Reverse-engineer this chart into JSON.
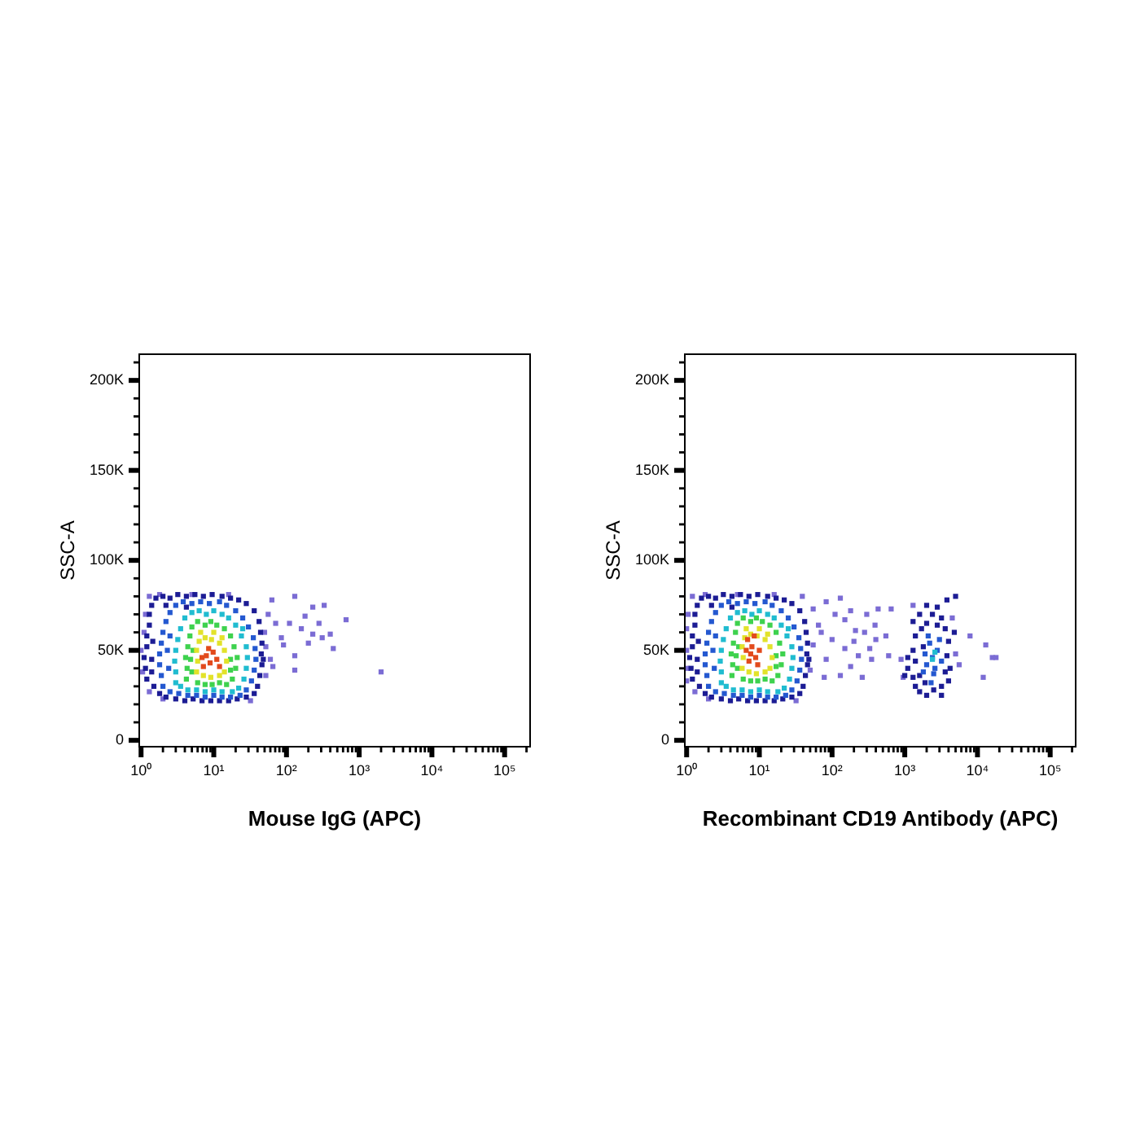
{
  "chart_data": [
    {
      "type": "scatter",
      "xlabel": "Mouse IgG (APC)",
      "ylabel": "SSC-A",
      "log": "x",
      "marker": "square",
      "xlim": [
        0.92,
        230000
      ],
      "ylim": [
        -4000,
        215000
      ],
      "xticks": [
        {
          "value": 1,
          "label": "10⁰"
        },
        {
          "value": 2,
          "label": null
        },
        {
          "value": 3,
          "label": null
        },
        {
          "value": 4,
          "label": null
        },
        {
          "value": 5,
          "label": null
        },
        {
          "value": 6,
          "label": null
        },
        {
          "value": 7,
          "label": null
        },
        {
          "value": 8,
          "label": null
        },
        {
          "value": 9,
          "label": null
        },
        {
          "value": 10,
          "label": "10¹"
        },
        {
          "value": 20,
          "label": null
        },
        {
          "value": 30,
          "label": null
        },
        {
          "value": 40,
          "label": null
        },
        {
          "value": 50,
          "label": null
        },
        {
          "value": 60,
          "label": null
        },
        {
          "value": 70,
          "label": null
        },
        {
          "value": 80,
          "label": null
        },
        {
          "value": 90,
          "label": null
        },
        {
          "value": 100,
          "label": "10²"
        },
        {
          "value": 200,
          "label": null
        },
        {
          "value": 300,
          "label": null
        },
        {
          "value": 400,
          "label": null
        },
        {
          "value": 500,
          "label": null
        },
        {
          "value": 600,
          "label": null
        },
        {
          "value": 700,
          "label": null
        },
        {
          "value": 800,
          "label": null
        },
        {
          "value": 900,
          "label": null
        },
        {
          "value": 1000,
          "label": "10³"
        },
        {
          "value": 2000,
          "label": null
        },
        {
          "value": 3000,
          "label": null
        },
        {
          "value": 4000,
          "label": null
        },
        {
          "value": 5000,
          "label": null
        },
        {
          "value": 6000,
          "label": null
        },
        {
          "value": 7000,
          "label": null
        },
        {
          "value": 8000,
          "label": null
        },
        {
          "value": 9000,
          "label": null
        },
        {
          "value": 10000,
          "label": "10⁴"
        },
        {
          "value": 20000,
          "label": null
        },
        {
          "value": 30000,
          "label": null
        },
        {
          "value": 40000,
          "label": null
        },
        {
          "value": 50000,
          "label": null
        },
        {
          "value": 60000,
          "label": null
        },
        {
          "value": 70000,
          "label": null
        },
        {
          "value": 80000,
          "label": null
        },
        {
          "value": 90000,
          "label": null
        },
        {
          "value": 100000,
          "label": "10⁵"
        },
        {
          "value": 200000,
          "label": null
        }
      ],
      "yticks": [
        0,
        {
          "value": 10000,
          "label": null
        },
        {
          "value": 20000,
          "label": null
        },
        {
          "value": 30000,
          "label": null
        },
        {
          "value": 40000,
          "label": null
        },
        {
          "value": 50000,
          "label": "50K"
        },
        {
          "value": 60000,
          "label": null
        },
        {
          "value": 70000,
          "label": null
        },
        {
          "value": 80000,
          "label": null
        },
        {
          "value": 90000,
          "label": null
        },
        {
          "value": 100000,
          "label": "100K"
        },
        {
          "value": 110000,
          "label": null
        },
        {
          "value": 120000,
          "label": null
        },
        {
          "value": 130000,
          "label": null
        },
        {
          "value": 140000,
          "label": null
        },
        {
          "value": 150000,
          "label": "150K"
        },
        {
          "value": 160000,
          "label": null
        },
        {
          "value": 170000,
          "label": null
        },
        {
          "value": 180000,
          "label": null
        },
        {
          "value": 190000,
          "label": null
        },
        {
          "value": 200000,
          "label": "200K"
        },
        {
          "value": 210000,
          "label": null
        }
      ],
      "series": [
        {
          "color": "#7b6cd4",
          "x": [
            1.0,
            1.1,
            1.15,
            1.05,
            1.3,
            1.8,
            5.0,
            16,
            2.0,
            32,
            1.3,
            130,
            230,
            330,
            180,
            110,
            160,
            230,
            310,
            400,
            280,
            200,
            130,
            91,
            85,
            660,
            440,
            65,
            130,
            2000,
            50,
            52,
            56,
            60,
            63,
            52,
            71
          ],
          "values": [
            50000,
            60000,
            70000,
            38000,
            80000,
            81000,
            81000,
            81000,
            23000,
            22000,
            27000,
            80000,
            74000,
            75000,
            69000,
            65000,
            62000,
            59000,
            57000,
            59000,
            65000,
            54000,
            47000,
            53000,
            57000,
            67000,
            51000,
            41000,
            39000,
            38000,
            60000,
            52000,
            70000,
            45000,
            78000,
            36000,
            65000
          ]
        },
        {
          "color": "#1c1c94",
          "x": [
            1.2,
            1.15,
            1.1,
            1.2,
            1.2,
            1.3,
            1.3,
            1.4,
            1.6,
            1.4,
            1.45,
            1.4,
            1.5,
            2.0,
            2.5,
            3.2,
            4.2,
            5.5,
            7.2,
            9.5,
            13,
            17,
            22,
            28,
            2.2,
            4.2,
            36,
            42,
            44,
            46,
            45,
            46,
            43,
            40,
            36,
            48,
            1.8,
            2.2,
            3.0,
            4.0,
            5.2,
            6.9,
            9.1,
            12,
            16,
            21,
            28
          ],
          "values": [
            34000,
            40000,
            46000,
            52000,
            58000,
            64000,
            70000,
            75000,
            79000,
            45000,
            55000,
            38000,
            30000,
            80000,
            79000,
            81000,
            80000,
            81000,
            80000,
            81000,
            80000,
            79000,
            78000,
            76000,
            75000,
            74000,
            72000,
            66000,
            60000,
            54000,
            48000,
            42000,
            36000,
            30000,
            26000,
            45000,
            26000,
            24000,
            23000,
            22000,
            23000,
            22000,
            22000,
            22000,
            22000,
            23000,
            24000
          ]
        },
        {
          "color": "#2458d0",
          "x": [
            2.0,
            1.9,
            1.8,
            1.8,
            1.9,
            2.0,
            2.2,
            2.5,
            3.0,
            3.8,
            5.0,
            6.6,
            8.7,
            12,
            15,
            20,
            25,
            30,
            35,
            37,
            38,
            36,
            33,
            28,
            23,
            17,
            13,
            10,
            7.6,
            5.8,
            4.4,
            3.3,
            2.5,
            2.3,
            2.4,
            2.5
          ],
          "values": [
            30000,
            36000,
            42000,
            48000,
            54000,
            60000,
            66000,
            71000,
            75000,
            77000,
            76000,
            77000,
            76000,
            77000,
            75000,
            72000,
            68000,
            63000,
            57000,
            51000,
            45000,
            39000,
            33000,
            28000,
            25000,
            24000,
            24000,
            25000,
            24000,
            25000,
            25000,
            26000,
            27000,
            50000,
            40000,
            58000
          ]
        },
        {
          "color": "#20bcd0",
          "x": [
            3.0,
            3.0,
            2.9,
            3.0,
            3.2,
            3.5,
            4.0,
            5.0,
            6.3,
            7.9,
            10,
            13,
            16,
            20,
            24,
            28,
            29,
            28,
            26,
            22,
            18,
            13,
            10,
            7.6,
            5.8,
            4.4,
            3.5,
            25
          ],
          "values": [
            32000,
            38000,
            44000,
            50000,
            56000,
            62000,
            68000,
            71000,
            72000,
            70000,
            72000,
            70000,
            68000,
            64000,
            58000,
            52000,
            46000,
            40000,
            34000,
            29000,
            27000,
            27000,
            28000,
            27000,
            28000,
            28000,
            30000,
            62000
          ]
        },
        {
          "color": "#3ed24e",
          "x": [
            4.2,
            4.3,
            4.1,
            4.4,
            4.7,
            5.0,
            6.0,
            7.6,
            9.1,
            11,
            14,
            17,
            19,
            21,
            20,
            18,
            15,
            12,
            9.5,
            7.6,
            6.0,
            5.0,
            4.8,
            5.2,
            17,
            17
          ],
          "values": [
            34000,
            40000,
            46000,
            52000,
            58000,
            63000,
            66000,
            64000,
            66000,
            64000,
            62000,
            58000,
            52000,
            46000,
            40000,
            34000,
            31000,
            32000,
            31000,
            31000,
            32000,
            38000,
            45000,
            50000,
            45000,
            39000
          ]
        },
        {
          "color": "#e2e22a",
          "x": [
            5.8,
            6.0,
            5.8,
            6.3,
            7.6,
            9.3,
            12,
            14,
            15,
            14,
            12,
            9.1,
            7.2,
            6.6,
            10,
            13
          ],
          "values": [
            38000,
            44000,
            50000,
            55000,
            57000,
            56000,
            54000,
            50000,
            44000,
            38000,
            36000,
            35000,
            36000,
            60000,
            60000,
            57000
          ]
        },
        {
          "color": "#e24a1c",
          "x": [
            7.2,
            8.9,
            11,
            7.9,
            9.8,
            12,
            8.5,
            6.9
          ],
          "values": [
            41000,
            43000,
            45000,
            47000,
            49000,
            41000,
            51000,
            46000
          ]
        }
      ]
    },
    {
      "type": "scatter",
      "xlabel": "Recombinant CD19 Antibody (APC)",
      "ylabel": "SSC-A",
      "log": "x",
      "marker": "square",
      "xlim": [
        0.92,
        230000
      ],
      "ylim": [
        -4000,
        215000
      ],
      "xticks": [
        {
          "value": 1,
          "label": "10⁰"
        },
        {
          "value": 2,
          "label": null
        },
        {
          "value": 3,
          "label": null
        },
        {
          "value": 4,
          "label": null
        },
        {
          "value": 5,
          "label": null
        },
        {
          "value": 6,
          "label": null
        },
        {
          "value": 7,
          "label": null
        },
        {
          "value": 8,
          "label": null
        },
        {
          "value": 9,
          "label": null
        },
        {
          "value": 10,
          "label": "10¹"
        },
        {
          "value": 20,
          "label": null
        },
        {
          "value": 30,
          "label": null
        },
        {
          "value": 40,
          "label": null
        },
        {
          "value": 50,
          "label": null
        },
        {
          "value": 60,
          "label": null
        },
        {
          "value": 70,
          "label": null
        },
        {
          "value": 80,
          "label": null
        },
        {
          "value": 90,
          "label": null
        },
        {
          "value": 100,
          "label": "10²"
        },
        {
          "value": 200,
          "label": null
        },
        {
          "value": 300,
          "label": null
        },
        {
          "value": 400,
          "label": null
        },
        {
          "value": 500,
          "label": null
        },
        {
          "value": 600,
          "label": null
        },
        {
          "value": 700,
          "label": null
        },
        {
          "value": 800,
          "label": null
        },
        {
          "value": 900,
          "label": null
        },
        {
          "value": 1000,
          "label": "10³"
        },
        {
          "value": 2000,
          "label": null
        },
        {
          "value": 3000,
          "label": null
        },
        {
          "value": 4000,
          "label": null
        },
        {
          "value": 5000,
          "label": null
        },
        {
          "value": 6000,
          "label": null
        },
        {
          "value": 7000,
          "label": null
        },
        {
          "value": 8000,
          "label": null
        },
        {
          "value": 9000,
          "label": null
        },
        {
          "value": 10000,
          "label": "10⁴"
        },
        {
          "value": 20000,
          "label": null
        },
        {
          "value": 30000,
          "label": null
        },
        {
          "value": 40000,
          "label": null
        },
        {
          "value": 50000,
          "label": null
        },
        {
          "value": 60000,
          "label": null
        },
        {
          "value": 70000,
          "label": null
        },
        {
          "value": 80000,
          "label": null
        },
        {
          "value": 90000,
          "label": null
        },
        {
          "value": 100000,
          "label": "10⁵"
        },
        {
          "value": 200000,
          "label": null
        }
      ],
      "yticks": [
        0,
        {
          "value": 10000,
          "label": null
        },
        {
          "value": 20000,
          "label": null
        },
        {
          "value": 30000,
          "label": null
        },
        {
          "value": 40000,
          "label": null
        },
        {
          "value": 50000,
          "label": "50K"
        },
        {
          "value": 60000,
          "label": null
        },
        {
          "value": 70000,
          "label": null
        },
        {
          "value": 80000,
          "label": null
        },
        {
          "value": 90000,
          "label": null
        },
        {
          "value": 100000,
          "label": "100K"
        },
        {
          "value": 110000,
          "label": null
        },
        {
          "value": 120000,
          "label": null
        },
        {
          "value": 130000,
          "label": null
        },
        {
          "value": 140000,
          "label": null
        },
        {
          "value": 150000,
          "label": "150K"
        },
        {
          "value": 160000,
          "label": null
        },
        {
          "value": 170000,
          "label": null
        },
        {
          "value": 180000,
          "label": null
        },
        {
          "value": 190000,
          "label": null
        },
        {
          "value": 200000,
          "label": "200K"
        },
        {
          "value": 210000,
          "label": null
        }
      ],
      "series": [
        {
          "color": "#7b6cd4",
          "x": [
            1.0,
            1.0,
            1.05,
            1.0,
            1.2,
            1.8,
            5.0,
            16,
            2.0,
            32,
            1.3,
            1.0,
            39,
            55,
            83,
            130,
            65,
            100,
            150,
            210,
            300,
            430,
            550,
            330,
            230,
            180,
            130,
            83,
            55,
            50,
            78,
            260,
            390,
            600,
            650,
            150,
            110,
            200,
            280,
            400,
            71,
            180,
            350,
            890,
            950,
            5000,
            4500,
            5600,
            1300,
            13000,
            16000,
            18000,
            12000,
            7900
          ],
          "values": [
            50000,
            62000,
            70000,
            40000,
            80000,
            81000,
            81000,
            81000,
            23000,
            22000,
            27000,
            33000,
            80000,
            73000,
            77000,
            79000,
            64000,
            56000,
            67000,
            61000,
            70000,
            73000,
            58000,
            51000,
            47000,
            41000,
            36000,
            45000,
            53000,
            39000,
            35000,
            35000,
            64000,
            47000,
            73000,
            51000,
            70000,
            55000,
            60000,
            56000,
            60000,
            72000,
            45000,
            45000,
            35000,
            48000,
            68000,
            42000,
            75000,
            53000,
            46000,
            46000,
            35000,
            58000
          ]
        },
        {
          "color": "#1c1c94",
          "x": [
            1.2,
            1.15,
            1.1,
            1.2,
            1.2,
            1.3,
            1.3,
            1.4,
            1.6,
            1.4,
            1.45,
            1.4,
            1.5,
            2.0,
            2.5,
            3.2,
            4.2,
            5.5,
            7.2,
            9.5,
            13,
            17,
            22,
            28,
            2.2,
            4.2,
            36,
            42,
            44,
            46,
            45,
            46,
            43,
            40,
            36,
            48,
            1.8,
            2.2,
            3.0,
            4.0,
            5.2,
            6.9,
            9.1,
            12,
            16,
            21,
            28,
            1100,
            1300,
            1400,
            1600,
            2000,
            2500,
            3200,
            4000,
            4200,
            3800,
            4000,
            3600,
            3200,
            2800,
            2400,
            2000,
            1700,
            1400,
            1300,
            1100,
            1400,
            1600,
            1800,
            2800,
            3600,
            4800,
            5000,
            3800,
            2000,
            1600,
            1000,
            1300,
            3200,
            1900
          ],
          "values": [
            34000,
            40000,
            46000,
            52000,
            58000,
            64000,
            70000,
            75000,
            79000,
            45000,
            55000,
            38000,
            30000,
            80000,
            79000,
            81000,
            80000,
            81000,
            80000,
            81000,
            80000,
            79000,
            78000,
            76000,
            75000,
            74000,
            72000,
            66000,
            60000,
            54000,
            48000,
            42000,
            36000,
            30000,
            26000,
            45000,
            26000,
            24000,
            23000,
            22000,
            23000,
            22000,
            22000,
            22000,
            22000,
            23000,
            24000,
            40000,
            35000,
            30000,
            27000,
            25000,
            28000,
            30000,
            33000,
            40000,
            47000,
            55000,
            62000,
            68000,
            74000,
            70000,
            65000,
            62000,
            58000,
            50000,
            46000,
            44000,
            36000,
            52000,
            64000,
            38000,
            60000,
            80000,
            78000,
            75000,
            70000,
            36000,
            66000,
            25000,
            32000
          ]
        },
        {
          "color": "#2458d0",
          "x": [
            2.0,
            1.9,
            1.8,
            1.8,
            1.9,
            2.0,
            2.2,
            2.5,
            3.0,
            3.8,
            5.0,
            6.6,
            8.7,
            12,
            15,
            20,
            25,
            30,
            35,
            37,
            38,
            36,
            33,
            28,
            23,
            17,
            13,
            10,
            7.6,
            5.8,
            4.4,
            3.3,
            2.5,
            2.3,
            2.4,
            2.5,
            2000,
            2400,
            2800,
            2200,
            2600,
            1900,
            3200,
            2500,
            2100,
            3000,
            1800,
            2300
          ],
          "values": [
            30000,
            36000,
            42000,
            48000,
            54000,
            60000,
            66000,
            71000,
            75000,
            77000,
            76000,
            77000,
            76000,
            77000,
            75000,
            72000,
            68000,
            63000,
            57000,
            51000,
            45000,
            39000,
            33000,
            28000,
            25000,
            24000,
            24000,
            25000,
            24000,
            25000,
            25000,
            26000,
            27000,
            50000,
            40000,
            58000,
            42000,
            46000,
            50000,
            54000,
            40000,
            48000,
            44000,
            37000,
            58000,
            56000,
            38000,
            32000
          ]
        },
        {
          "color": "#20bcd0",
          "x": [
            3.0,
            3.0,
            2.9,
            3.0,
            3.2,
            3.5,
            4.0,
            5.0,
            6.3,
            7.9,
            10,
            13,
            16,
            20,
            24,
            28,
            29,
            28,
            26,
            22,
            18,
            13,
            10,
            7.6,
            5.8,
            4.4,
            3.5,
            25,
            2400,
            2600
          ],
          "values": [
            32000,
            38000,
            44000,
            50000,
            56000,
            62000,
            68000,
            71000,
            72000,
            70000,
            72000,
            70000,
            68000,
            64000,
            58000,
            52000,
            46000,
            40000,
            34000,
            29000,
            27000,
            27000,
            28000,
            27000,
            28000,
            28000,
            30000,
            62000,
            45000,
            49000
          ]
        },
        {
          "color": "#3ed24e",
          "x": [
            4.2,
            4.3,
            4.1,
            4.4,
            4.7,
            5.0,
            6.0,
            7.6,
            9.1,
            11,
            14,
            17,
            19,
            21,
            20,
            18,
            15,
            12,
            9.5,
            7.6,
            6.0,
            5.0,
            4.8,
            5.2,
            17,
            17
          ],
          "values": [
            36000,
            42000,
            48000,
            54000,
            60000,
            65000,
            68000,
            66000,
            68000,
            66000,
            64000,
            60000,
            54000,
            48000,
            42000,
            36000,
            33000,
            34000,
            33000,
            33000,
            34000,
            40000,
            47000,
            52000,
            47000,
            41000
          ]
        },
        {
          "color": "#e2e22a",
          "x": [
            5.8,
            6.0,
            5.8,
            6.3,
            7.6,
            9.3,
            12,
            14,
            15,
            14,
            12,
            9.1,
            7.2,
            6.6,
            10,
            13
          ],
          "values": [
            40000,
            46000,
            52000,
            57000,
            59000,
            58000,
            56000,
            52000,
            46000,
            40000,
            38000,
            37000,
            38000,
            62000,
            62000,
            59000
          ]
        },
        {
          "color": "#e24a1c",
          "x": [
            7.2,
            8.9,
            10,
            7.9,
            6.9,
            8.5,
            7.6,
            9.5,
            6.6
          ],
          "values": [
            44000,
            46000,
            50000,
            52000,
            56000,
            58000,
            48000,
            42000,
            50000
          ]
        }
      ]
    }
  ]
}
